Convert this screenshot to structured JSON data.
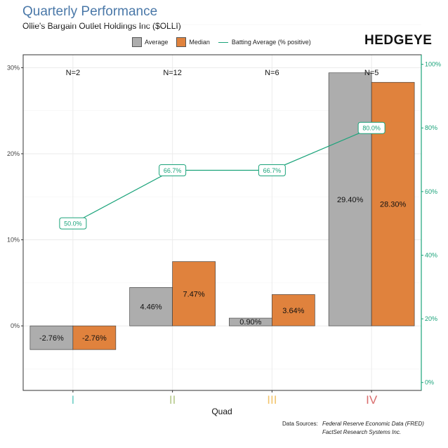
{
  "header": {
    "title": "Quarterly Performance",
    "subtitle": "Ollie's Bargain Outlet Holdings Inc ($OLLI)",
    "brand": "HEDGEYE"
  },
  "legend": {
    "average_label": "Average",
    "median_label": "Median",
    "batting_label": "Batting Average (% positive)"
  },
  "colors": {
    "average": "#adadad",
    "median": "#e0823d",
    "batting": "#1aa37a",
    "quad_I": "#6ecfc6",
    "quad_II": "#b5c98a",
    "quad_III": "#f2c46b",
    "quad_IV": "#d96d6d"
  },
  "sources": {
    "label": "Data Sources:",
    "line1": "Federal Reserve Economic Data (FRED)",
    "line2": "FactSet Research Systems Inc."
  },
  "chart_data": {
    "type": "bar",
    "title": "Quarterly Performance",
    "xlabel": "Quad",
    "categories": [
      "I",
      "II",
      "III",
      "IV"
    ],
    "counts": [
      "N=2",
      "N=12",
      "N=6",
      "N=5"
    ],
    "series": [
      {
        "name": "Average",
        "values": [
          -2.76,
          4.46,
          0.9,
          29.4
        ],
        "labels": [
          "-2.76%",
          "4.46%",
          "0.90%",
          "29.40%"
        ]
      },
      {
        "name": "Median",
        "values": [
          -2.76,
          7.47,
          3.64,
          28.3
        ],
        "labels": [
          "-2.76%",
          "7.47%",
          "3.64%",
          "28.30%"
        ]
      }
    ],
    "batting_average": {
      "name": "Batting Average (% positive)",
      "values": [
        50.0,
        66.7,
        66.7,
        80.0
      ],
      "labels": [
        "50.0%",
        "66.7%",
        "66.7%",
        "80.0%"
      ]
    },
    "ylim_left": [
      -7.5,
      31.5
    ],
    "yticks_left": [
      0,
      10,
      20,
      30
    ],
    "ytick_labels_left": [
      "0%",
      "10%",
      "20%",
      "30%"
    ],
    "ylim_right": [
      -2.5,
      103.0
    ],
    "yticks_right": [
      0,
      20,
      40,
      60,
      80,
      100
    ],
    "ytick_labels_right": [
      "0%",
      "20%",
      "40%",
      "60%",
      "80%",
      "100%"
    ],
    "grid": true
  }
}
